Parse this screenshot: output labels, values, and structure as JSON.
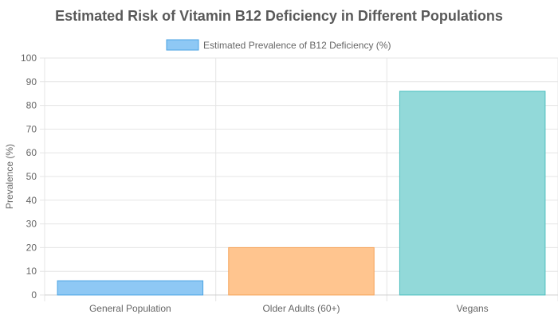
{
  "chart_data": {
    "type": "bar",
    "title": "Estimated Risk of Vitamin B12 Deficiency in Different Populations",
    "xlabel": "",
    "ylabel": "Prevalence (%)",
    "ylim": [
      0,
      100
    ],
    "yticks": [
      0,
      10,
      20,
      30,
      40,
      50,
      60,
      70,
      80,
      90,
      100
    ],
    "categories": [
      "General Population",
      "Older Adults (60+)",
      "Vegans"
    ],
    "series": [
      {
        "name": "Estimated Prevalence of B12 Deficiency (%)",
        "values": [
          6,
          20,
          86
        ]
      }
    ],
    "bar_colors": [
      {
        "fill": "#8EC8F4",
        "stroke": "#4BA3E3"
      },
      {
        "fill": "#FFC58F",
        "stroke": "#F5A35A"
      },
      {
        "fill": "#92D9D9",
        "stroke": "#4BBFBF"
      }
    ],
    "legend": {
      "position": "top",
      "swatch_fill": "#8EC8F4",
      "swatch_stroke": "#4BA3E3"
    },
    "grid": true,
    "grid_color": "#E5E5E5",
    "text_color": "#666666",
    "title_color": "#595959"
  }
}
